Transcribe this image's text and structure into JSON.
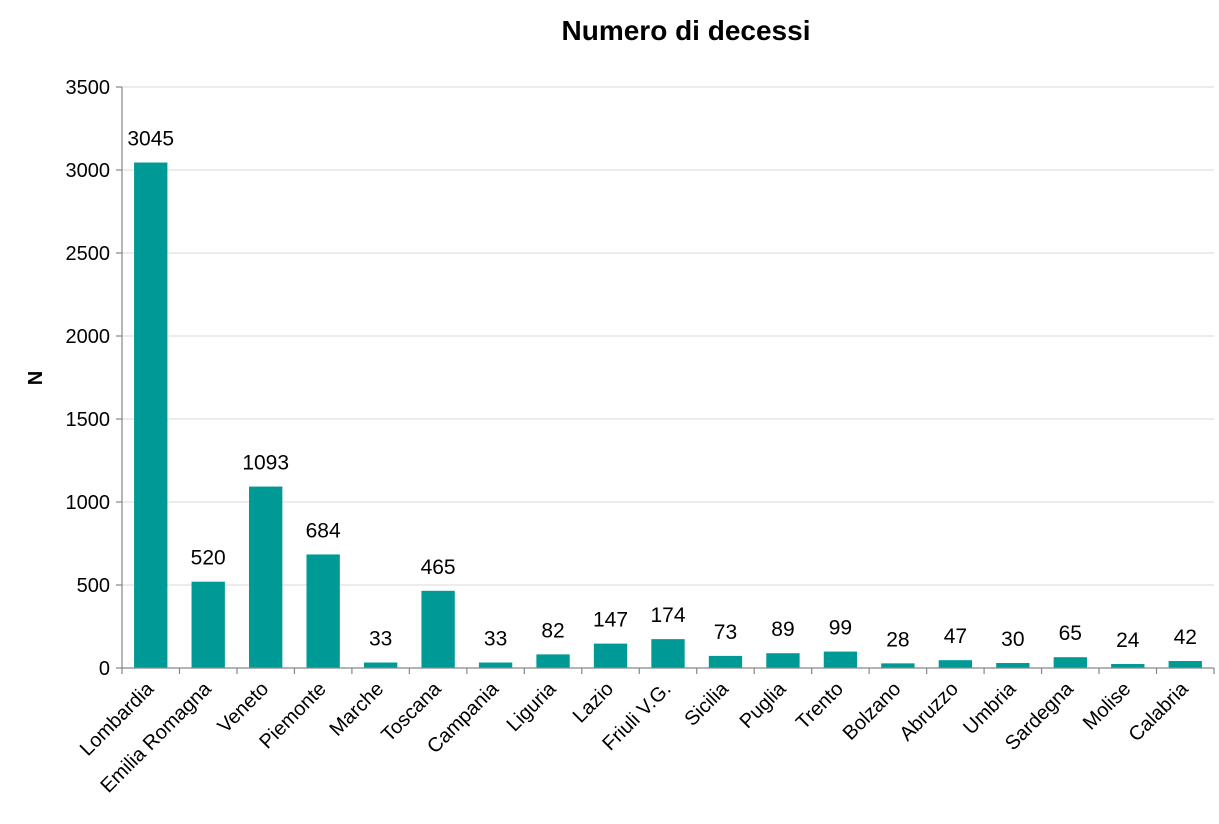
{
  "chart_data": {
    "type": "bar",
    "title": "Numero di decessi",
    "xlabel": "",
    "ylabel": "N",
    "ylim": [
      0,
      3500
    ],
    "yticks": [
      0,
      500,
      1000,
      1500,
      2000,
      2500,
      3000,
      3500
    ],
    "grid": true,
    "legend": "none",
    "bar_color": "#009a96",
    "categories": [
      "Lombardia",
      "Emilia Romagna",
      "Veneto",
      "Piemonte",
      "Marche",
      "Toscana",
      "Campania",
      "Liguria",
      "Lazio",
      "Friuli V.G.",
      "Sicilia",
      "Puglia",
      "Trento",
      "Bolzano",
      "Abruzzo",
      "Umbria",
      "Sardegna",
      "Molise",
      "Calabria"
    ],
    "values": [
      3045,
      520,
      1093,
      684,
      33,
      465,
      33,
      82,
      147,
      174,
      73,
      89,
      99,
      28,
      47,
      30,
      65,
      24,
      42
    ]
  }
}
